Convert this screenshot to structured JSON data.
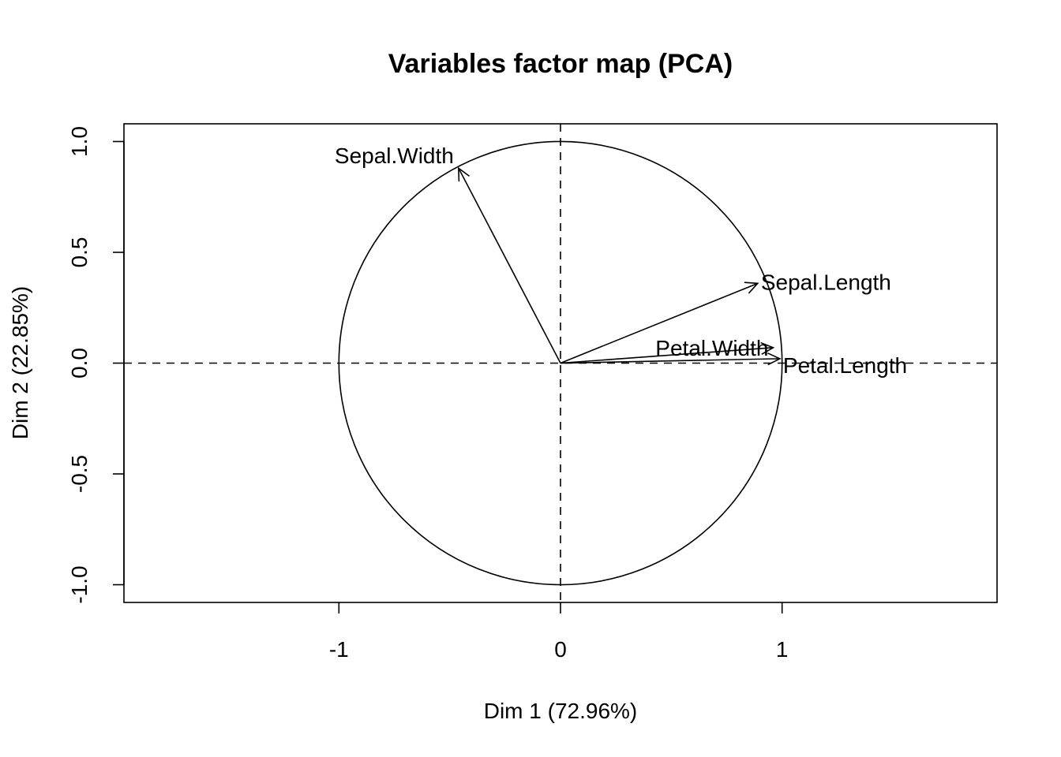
{
  "chart_data": {
    "type": "scatter",
    "title": "Variables factor map (PCA)",
    "xlabel": "Dim 1 (72.96%)",
    "ylabel": "Dim 2 (22.85%)",
    "xlim": [
      -1.97,
      1.97
    ],
    "ylim": [
      -1.08,
      1.08
    ],
    "x_ticks": [
      -1,
      0,
      1
    ],
    "x_tick_labels": [
      "-1",
      "0",
      "1"
    ],
    "y_ticks": [
      -1.0,
      -0.5,
      0.0,
      0.5,
      1.0
    ],
    "y_tick_labels": [
      "-1.0",
      "-0.5",
      "0.0",
      "0.5",
      "1.0"
    ],
    "grid": false,
    "correlation_circle": true,
    "reference_lines": {
      "x": 0,
      "y": 0,
      "style": "dashed"
    },
    "variables": [
      {
        "name": "Sepal.Length",
        "x": 0.89,
        "y": 0.36
      },
      {
        "name": "Sepal.Width",
        "x": -0.46,
        "y": 0.88
      },
      {
        "name": "Petal.Length",
        "x": 0.99,
        "y": 0.02
      },
      {
        "name": "Petal.Width",
        "x": 0.96,
        "y": 0.07
      }
    ]
  }
}
